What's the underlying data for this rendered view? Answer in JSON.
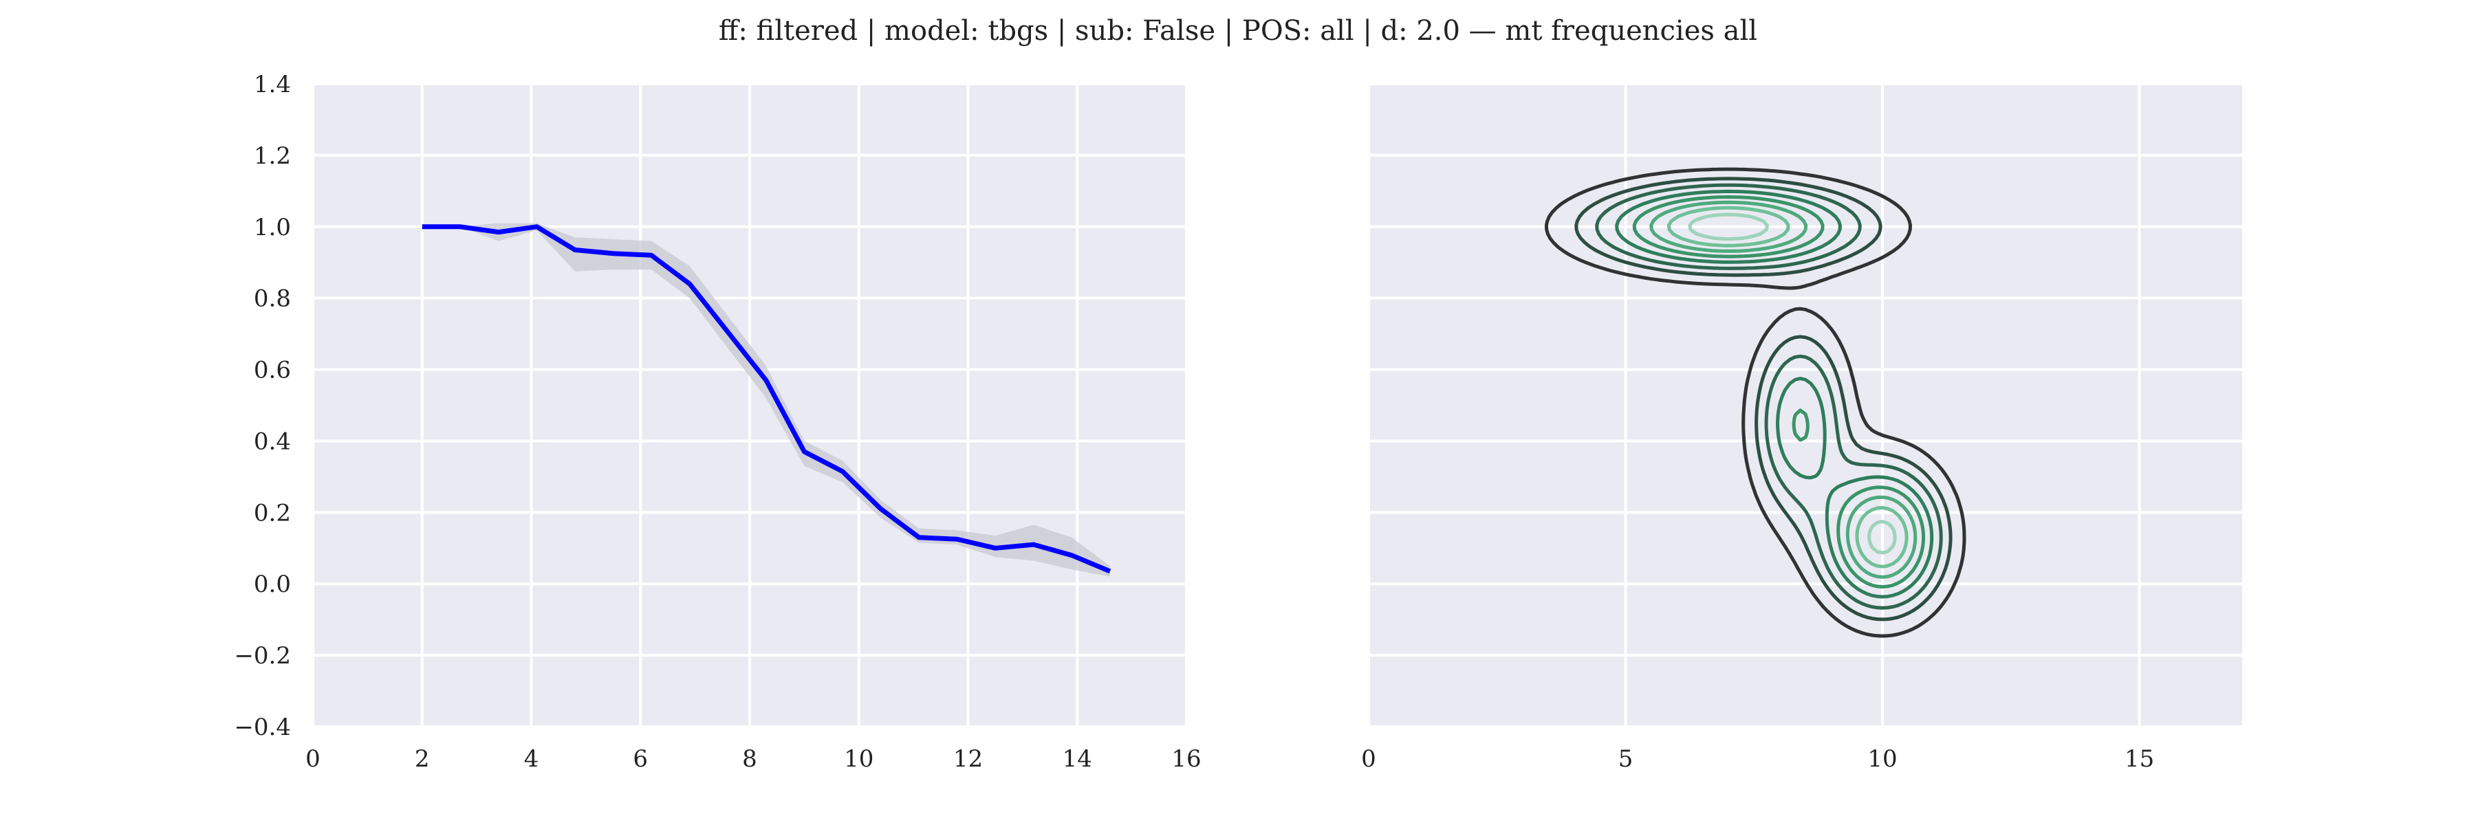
{
  "figure": {
    "title": "ff: filtered | model: tbgs | sub: False | POS: all | d: 2.0 — mt frequencies all"
  },
  "chart_data": [
    {
      "type": "line",
      "title": "",
      "xlabel": "",
      "ylabel": "",
      "xlim": [
        0,
        16
      ],
      "ylim": [
        -0.4,
        1.4
      ],
      "xticks": [
        0,
        2,
        4,
        6,
        8,
        10,
        12,
        14,
        16
      ],
      "yticks": [
        -0.4,
        -0.2,
        0.0,
        0.2,
        0.4,
        0.6,
        0.8,
        1.0,
        1.2,
        1.4
      ],
      "xtick_labels": [
        "0",
        "2",
        "4",
        "6",
        "8",
        "10",
        "12",
        "14",
        "16"
      ],
      "ytick_labels": [
        "−0.4",
        "−0.2",
        "0.0",
        "0.2",
        "0.4",
        "0.6",
        "0.8",
        "1.0",
        "1.2",
        "1.4"
      ],
      "grid": true,
      "line_color": "#0000ff",
      "band_color": "#c8c8d2",
      "series": [
        {
          "x": [
            2.0,
            2.7,
            3.4,
            4.1,
            4.8,
            5.5,
            6.2,
            6.9,
            7.6,
            8.3,
            9.0,
            9.7,
            10.4,
            11.1,
            11.8,
            12.5,
            13.2,
            13.9,
            14.6
          ],
          "y": [
            1.0,
            1.0,
            0.985,
            1.0,
            0.935,
            0.925,
            0.92,
            0.84,
            0.705,
            0.57,
            0.37,
            0.315,
            0.21,
            0.13,
            0.125,
            0.1,
            0.11,
            0.08,
            0.035
          ],
          "lower": [
            1.0,
            1.0,
            0.96,
            0.99,
            0.875,
            0.88,
            0.88,
            0.8,
            0.66,
            0.52,
            0.33,
            0.285,
            0.185,
            0.115,
            0.11,
            0.075,
            0.065,
            0.04,
            0.02
          ],
          "upper": [
            1.0,
            1.0,
            1.01,
            1.01,
            0.97,
            0.965,
            0.96,
            0.89,
            0.75,
            0.61,
            0.4,
            0.345,
            0.235,
            0.155,
            0.15,
            0.135,
            0.165,
            0.13,
            0.05
          ]
        }
      ]
    },
    {
      "type": "contour",
      "title": "",
      "xlabel": "",
      "ylabel": "",
      "xlim": [
        0,
        17
      ],
      "ylim": [
        -0.4,
        1.4
      ],
      "xticks": [
        0,
        5,
        10,
        15
      ],
      "xtick_labels": [
        "0",
        "5",
        "10",
        "15"
      ],
      "yticks": [
        -0.4,
        -0.2,
        0.0,
        0.2,
        0.4,
        0.6,
        0.8,
        1.0,
        1.2,
        1.4
      ],
      "ytick_labels": [],
      "grid": true,
      "palette": [
        "#2f3333",
        "#2d4d42",
        "#2e6650",
        "#2f7d5c",
        "#3a9468",
        "#4faa7e",
        "#6fc098",
        "#9dd3bb"
      ],
      "density_peaks": [
        {
          "x": 7.0,
          "y": 1.0,
          "sx": 1.65,
          "sy": 0.075,
          "w": 1.0
        },
        {
          "x": 10.0,
          "y": 0.13,
          "sx": 0.75,
          "sy": 0.13,
          "w": 0.95
        },
        {
          "x": 8.4,
          "y": 0.45,
          "sx": 0.6,
          "sy": 0.17,
          "w": 0.55
        }
      ]
    }
  ]
}
